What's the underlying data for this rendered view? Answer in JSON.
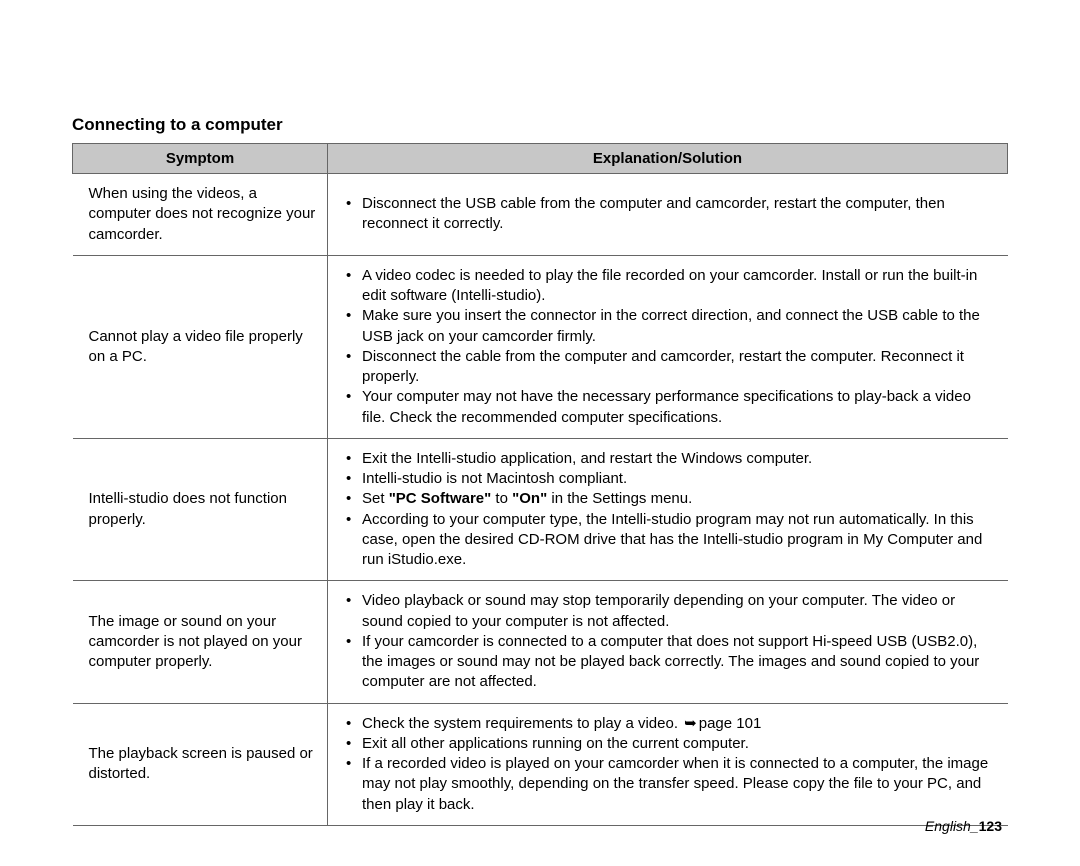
{
  "section_title": "Connecting to a computer",
  "headers": {
    "symptom": "Symptom",
    "solution": "Explanation/Solution"
  },
  "rows": [
    {
      "symptom": "When using the videos, a computer does not recognize your camcorder.",
      "items": [
        {
          "type": "plain",
          "text": "Disconnect the USB cable from the computer and camcorder, restart the computer, then reconnect it correctly."
        }
      ]
    },
    {
      "symptom": "Cannot play a video file properly on a PC.",
      "items": [
        {
          "type": "plain",
          "text": "A video codec is needed to play the file recorded on your camcorder. Install or run the built-in edit software (Intelli-studio)."
        },
        {
          "type": "plain",
          "text": "Make sure you insert the connector in the correct direction, and connect the USB cable to the USB jack on your camcorder firmly."
        },
        {
          "type": "plain",
          "text": "Disconnect the cable from the computer and camcorder, restart the computer. Reconnect it properly."
        },
        {
          "type": "plain",
          "text": "Your computer may not have the necessary performance specifications to play-back a video file. Check the recommended computer specifications."
        }
      ]
    },
    {
      "symptom": "Intelli-studio does not function properly.",
      "items": [
        {
          "type": "plain",
          "text": "Exit the Intelli-studio application, and restart the Windows computer."
        },
        {
          "type": "plain",
          "text": "Intelli-studio is not Macintosh compliant."
        },
        {
          "type": "rich",
          "prefix": "Set ",
          "bold1": "\"PC Software\"",
          "mid": " to ",
          "bold2": "\"On\"",
          "suffix": " in the Settings menu."
        },
        {
          "type": "plain",
          "text": "According to your computer type, the Intelli-studio program may not run automatically. In this case, open the desired CD-ROM drive that has the Intelli-studio program in My Computer and run iStudio.exe."
        }
      ]
    },
    {
      "symptom": "The image or sound on your camcorder is not played on your computer properly.",
      "items": [
        {
          "type": "plain",
          "text": "Video playback or sound may stop temporarily depending on your computer. The video or sound copied to your computer is not affected."
        },
        {
          "type": "plain",
          "text": "If your camcorder is connected to a computer that does not support Hi-speed USB (USB2.0), the images or sound may not be played back correctly. The images and sound copied to your computer are not affected."
        }
      ]
    },
    {
      "symptom": "The playback screen is paused or distorted.",
      "items": [
        {
          "type": "pageref",
          "text": "Check the system requirements to play a video. ",
          "ref": "page 101"
        },
        {
          "type": "plain",
          "text": "Exit all other applications running on the current computer."
        },
        {
          "type": "plain",
          "text": "If a recorded video is played on your camcorder when it is connected to a computer, the image may not play smoothly, depending on the transfer speed. Please copy the file to your PC, and then play it back."
        }
      ]
    }
  ],
  "footer": {
    "lang": "English",
    "page": "123"
  },
  "colors": {
    "header_bg": "#c7c7c7",
    "border": "#666666",
    "text": "#000000",
    "background": "#ffffff"
  }
}
